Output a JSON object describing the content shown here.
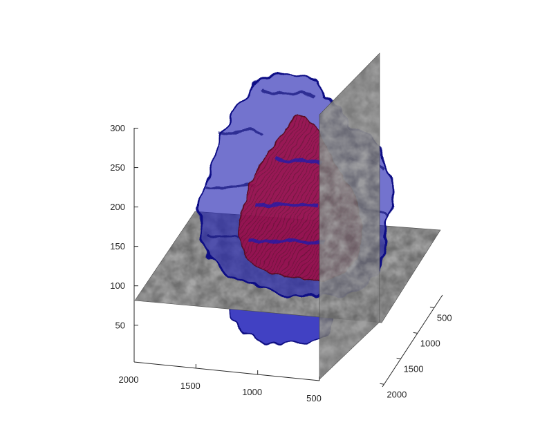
{
  "chart_data": {
    "type": "3d-volume-slice",
    "title": "",
    "xlabel": "",
    "ylabel": "",
    "zlabel": "",
    "grid": false,
    "legend": "none",
    "x_axis": {
      "ticks": [
        2000,
        1500,
        1000,
        500
      ],
      "labels": [
        "2000",
        "1500",
        "1000",
        "500"
      ]
    },
    "y_axis": {
      "ticks": [
        500,
        1000,
        1500,
        2000
      ],
      "labels": [
        "500",
        "1000",
        "1500",
        "2000"
      ]
    },
    "z_axis": {
      "ticks": [
        50,
        100,
        150,
        200,
        250,
        300
      ],
      "labels": [
        "50",
        "100",
        "150",
        "200",
        "250",
        "300"
      ]
    },
    "slices": [
      {
        "orientation": "horizontal",
        "colormap": "gray"
      },
      {
        "orientation": "vertical",
        "colormap": "gray"
      }
    ],
    "surfaces": [
      {
        "role": "outer isosurface",
        "color": "#1a1aa8",
        "opacity": 0.6
      },
      {
        "role": "inner isosurface",
        "color": "#9a1040",
        "opacity": 0.8
      }
    ]
  }
}
